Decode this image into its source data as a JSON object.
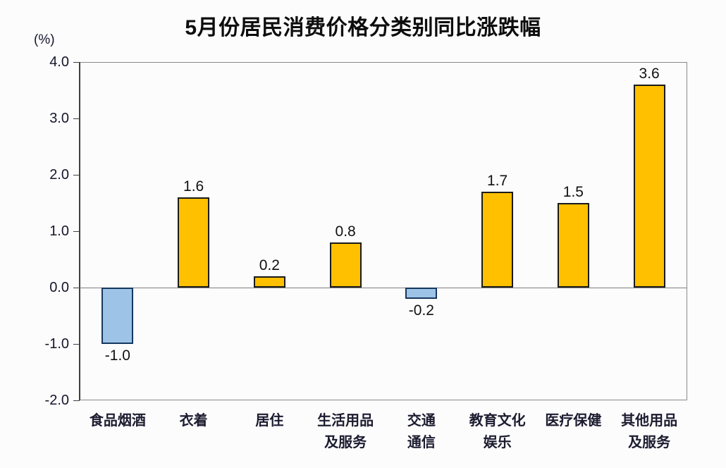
{
  "chart_data": {
    "type": "bar",
    "title": "5月份居民消费价格分类别同比涨跌幅",
    "unit_label": "(%)",
    "categories": [
      "食品烟酒",
      "衣着",
      "居住",
      "生活用品及服务",
      "交通通信",
      "教育文化娱乐",
      "医疗保健",
      "其他用品及服务"
    ],
    "category_lines": [
      [
        "食品烟酒"
      ],
      [
        "衣着"
      ],
      [
        "居住"
      ],
      [
        "生活用品",
        "及服务"
      ],
      [
        "交通",
        "通信"
      ],
      [
        "教育文化",
        "娱乐"
      ],
      [
        "医疗保健"
      ],
      [
        "其他用品",
        "及服务"
      ]
    ],
    "values": [
      -1.0,
      1.6,
      0.2,
      0.8,
      -0.2,
      1.7,
      1.5,
      3.6
    ],
    "value_labels": [
      "-1.0",
      "1.6",
      "0.2",
      "0.8",
      "-0.2",
      "1.7",
      "1.5",
      "3.6"
    ],
    "xlabel": "",
    "ylabel": "(%)",
    "ylim": [
      -2.0,
      4.0
    ],
    "ytick_step": 1.0,
    "yticks": [
      "4.0",
      "3.0",
      "2.0",
      "1.0",
      "0.0",
      "-1.0",
      "-2.0"
    ],
    "grid": false,
    "legend": null,
    "colors": {
      "bar_positive": "#FFC000",
      "bar_negative": "#9DC3E6",
      "bar_positive_border": "#1a1a1a",
      "bar_negative_border": "#17375E",
      "axis_frame": "#8a8a8a",
      "axis_line": "#3f3f3f",
      "zero_line": "#7f7f7f",
      "title_text": "#0d0d0d",
      "label_text": "#1c1c30"
    }
  }
}
